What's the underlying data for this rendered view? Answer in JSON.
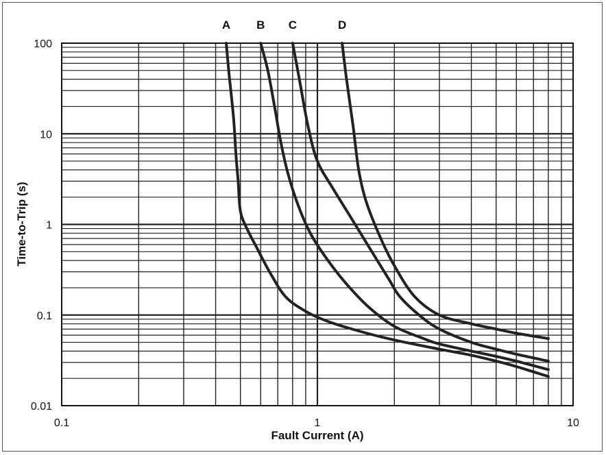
{
  "chart_data": {
    "type": "line",
    "title": "",
    "xlabel": "Fault Current (A)",
    "ylabel": "Time-to-Trip (s)",
    "xscale": "log",
    "yscale": "log",
    "xlim": [
      0.1,
      10
    ],
    "ylim": [
      0.01,
      100
    ],
    "grid": true,
    "x_tick_labels": [
      {
        "value": 0.1,
        "label": "0.1"
      },
      {
        "value": 1,
        "label": "1"
      },
      {
        "value": 10,
        "label": "10"
      }
    ],
    "y_tick_labels": [
      {
        "value": 100,
        "label": "100"
      },
      {
        "value": 10,
        "label": "10"
      },
      {
        "value": 1,
        "label": "1"
      },
      {
        "value": 0.1,
        "label": "0.1"
      },
      {
        "value": 0.01,
        "label": "0.01"
      }
    ],
    "series": [
      {
        "name": "A",
        "color": "#222222",
        "x": [
          0.44,
          0.45,
          0.47,
          0.48,
          0.49,
          0.5,
          0.53,
          0.58,
          0.65,
          0.75,
          0.9,
          1.1,
          1.5,
          2.0,
          3.0,
          4.0,
          5.0,
          6.0,
          8.0
        ],
        "y": [
          100,
          50,
          15,
          6,
          3,
          1.4,
          0.9,
          0.55,
          0.3,
          0.16,
          0.11,
          0.085,
          0.065,
          0.053,
          0.042,
          0.036,
          0.031,
          0.027,
          0.021
        ]
      },
      {
        "name": "B",
        "color": "#222222",
        "x": [
          0.6,
          0.64,
          0.68,
          0.72,
          0.77,
          0.85,
          0.95,
          1.1,
          1.3,
          1.6,
          2.0,
          2.6,
          3.0,
          4.0,
          5.0,
          6.0,
          8.0
        ],
        "y": [
          100,
          50,
          20,
          8,
          3.5,
          1.5,
          0.75,
          0.4,
          0.22,
          0.12,
          0.075,
          0.055,
          0.048,
          0.04,
          0.035,
          0.031,
          0.025
        ]
      },
      {
        "name": "C",
        "color": "#222222",
        "x": [
          0.8,
          0.85,
          0.92,
          1.0,
          1.15,
          1.35,
          1.6,
          1.9,
          2.1,
          2.5,
          3.0,
          4.0,
          5.0,
          6.0,
          8.0
        ],
        "y": [
          100,
          40,
          12,
          5,
          2.5,
          1.2,
          0.55,
          0.25,
          0.16,
          0.1,
          0.07,
          0.05,
          0.042,
          0.037,
          0.031
        ]
      },
      {
        "name": "D",
        "color": "#222222",
        "x": [
          1.25,
          1.3,
          1.38,
          1.45,
          1.55,
          1.75,
          2.0,
          2.4,
          3.0,
          4.0,
          5.0,
          6.0,
          8.0
        ],
        "y": [
          100,
          40,
          12,
          4,
          1.8,
          0.75,
          0.35,
          0.16,
          0.1,
          0.08,
          0.07,
          0.063,
          0.055
        ]
      }
    ]
  }
}
